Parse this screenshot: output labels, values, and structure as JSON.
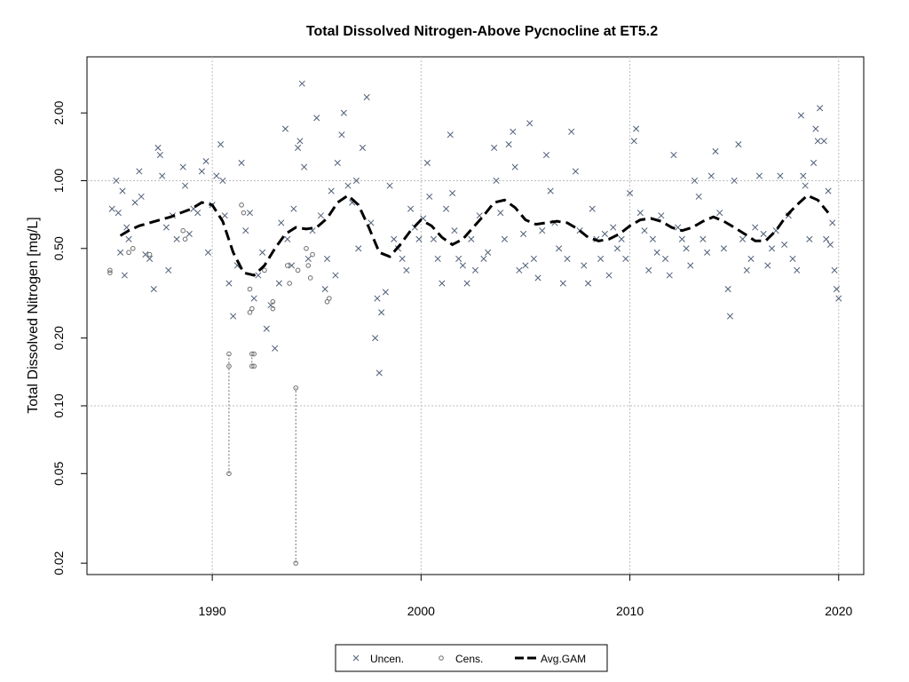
{
  "chart_data": {
    "type": "scatter",
    "title": "Total Dissolved Nitrogen-Above Pycnocline at ET5.2",
    "xlabel": "",
    "ylabel": "Total Dissolved Nitrogen [mg/L]",
    "y_scale": "log",
    "xlim": [
      1984.0,
      2021.2
    ],
    "ylim": [
      0.0178,
      3.55
    ],
    "x_ticks": [
      "1990",
      "2000",
      "2010",
      "2020"
    ],
    "x_tick_values": [
      1990,
      2000,
      2010,
      2020
    ],
    "y_ticks": [
      "0.02",
      "0.05",
      "0.10",
      "0.20",
      "0.50",
      "1.00",
      "2.00"
    ],
    "y_tick_values": [
      0.02,
      0.05,
      0.1,
      0.2,
      0.5,
      1.0,
      2.0
    ],
    "grid_x": [
      1990,
      2000,
      2010,
      2020
    ],
    "grid_y": [
      0.1,
      1.0
    ],
    "legend": {
      "position": "bottom-center",
      "entries": [
        "Uncen.",
        "Cens.",
        "Avg.GAM"
      ]
    },
    "colors": {
      "uncen": "#4f5f78",
      "cens": "#6e6e6e",
      "gam": "#000000",
      "grid": "#bdbdbd"
    },
    "series": [
      {
        "name": "Uncen.",
        "points": [
          [
            1985.2,
            0.75
          ],
          [
            1985.4,
            1.0
          ],
          [
            1985.5,
            0.72
          ],
          [
            1985.6,
            0.48
          ],
          [
            1985.7,
            0.9
          ],
          [
            1985.8,
            0.38
          ],
          [
            1985.9,
            0.62
          ],
          [
            1986.0,
            0.55
          ],
          [
            1986.3,
            0.8
          ],
          [
            1986.5,
            1.1
          ],
          [
            1986.6,
            0.85
          ],
          [
            1986.8,
            0.47
          ],
          [
            1987.0,
            0.45
          ],
          [
            1987.2,
            0.33
          ],
          [
            1987.4,
            1.4
          ],
          [
            1987.5,
            1.3
          ],
          [
            1987.6,
            1.05
          ],
          [
            1987.8,
            0.62
          ],
          [
            1987.9,
            0.4
          ],
          [
            1988.1,
            0.7
          ],
          [
            1988.3,
            0.55
          ],
          [
            1988.6,
            1.15
          ],
          [
            1988.7,
            0.95
          ],
          [
            1988.9,
            0.58
          ],
          [
            1989.1,
            0.75
          ],
          [
            1989.3,
            0.72
          ],
          [
            1989.5,
            1.1
          ],
          [
            1989.7,
            1.22
          ],
          [
            1989.8,
            0.48
          ],
          [
            1990.0,
            0.78
          ],
          [
            1990.2,
            1.05
          ],
          [
            1990.4,
            1.45
          ],
          [
            1990.5,
            1.0
          ],
          [
            1990.6,
            0.7
          ],
          [
            1990.8,
            0.35
          ],
          [
            1991.0,
            0.25
          ],
          [
            1991.2,
            0.42
          ],
          [
            1991.4,
            1.2
          ],
          [
            1991.6,
            0.6
          ],
          [
            1991.8,
            0.72
          ],
          [
            1992.0,
            0.3
          ],
          [
            1992.2,
            0.38
          ],
          [
            1992.4,
            0.48
          ],
          [
            1992.6,
            0.22
          ],
          [
            1992.8,
            0.28
          ],
          [
            1993.0,
            0.18
          ],
          [
            1993.2,
            0.35
          ],
          [
            1993.3,
            0.65
          ],
          [
            1993.5,
            1.7
          ],
          [
            1993.6,
            0.55
          ],
          [
            1993.8,
            0.42
          ],
          [
            1993.9,
            0.75
          ],
          [
            1994.1,
            1.4
          ],
          [
            1994.2,
            1.5
          ],
          [
            1994.3,
            2.7
          ],
          [
            1994.4,
            1.15
          ],
          [
            1994.6,
            0.45
          ],
          [
            1994.8,
            0.6
          ],
          [
            1995.0,
            1.9
          ],
          [
            1995.2,
            0.7
          ],
          [
            1995.4,
            0.33
          ],
          [
            1995.5,
            0.45
          ],
          [
            1995.7,
            0.9
          ],
          [
            1995.9,
            0.38
          ],
          [
            1996.0,
            1.2
          ],
          [
            1996.2,
            1.6
          ],
          [
            1996.3,
            2.0
          ],
          [
            1996.5,
            0.95
          ],
          [
            1996.7,
            0.8
          ],
          [
            1996.9,
            1.0
          ],
          [
            1997.0,
            0.5
          ],
          [
            1997.2,
            1.4
          ],
          [
            1997.4,
            2.35
          ],
          [
            1997.6,
            0.65
          ],
          [
            1997.8,
            0.2
          ],
          [
            1997.9,
            0.3
          ],
          [
            1998.0,
            0.14
          ],
          [
            1998.1,
            0.26
          ],
          [
            1998.3,
            0.32
          ],
          [
            1998.5,
            0.95
          ],
          [
            1998.7,
            0.55
          ],
          [
            1998.9,
            0.5
          ],
          [
            1999.1,
            0.45
          ],
          [
            1999.3,
            0.4
          ],
          [
            1999.5,
            0.75
          ],
          [
            1999.7,
            0.62
          ],
          [
            1999.9,
            0.55
          ],
          [
            2000.1,
            0.68
          ],
          [
            2000.3,
            1.2
          ],
          [
            2000.4,
            0.85
          ],
          [
            2000.6,
            0.55
          ],
          [
            2000.8,
            0.45
          ],
          [
            2001.0,
            0.35
          ],
          [
            2001.2,
            0.75
          ],
          [
            2001.4,
            1.6
          ],
          [
            2001.5,
            0.88
          ],
          [
            2001.6,
            0.6
          ],
          [
            2001.8,
            0.45
          ],
          [
            2002.0,
            0.42
          ],
          [
            2002.2,
            0.35
          ],
          [
            2002.4,
            0.55
          ],
          [
            2002.6,
            0.4
          ],
          [
            2002.8,
            0.7
          ],
          [
            2003.0,
            0.45
          ],
          [
            2003.2,
            0.48
          ],
          [
            2003.5,
            1.4
          ],
          [
            2003.6,
            1.0
          ],
          [
            2003.8,
            0.72
          ],
          [
            2004.0,
            0.55
          ],
          [
            2004.2,
            1.45
          ],
          [
            2004.4,
            1.65
          ],
          [
            2004.5,
            1.15
          ],
          [
            2004.7,
            0.4
          ],
          [
            2004.9,
            0.58
          ],
          [
            2005.0,
            0.42
          ],
          [
            2005.2,
            1.8
          ],
          [
            2005.4,
            0.45
          ],
          [
            2005.6,
            0.37
          ],
          [
            2005.8,
            0.6
          ],
          [
            2006.0,
            1.3
          ],
          [
            2006.2,
            0.9
          ],
          [
            2006.4,
            0.65
          ],
          [
            2006.6,
            0.5
          ],
          [
            2006.8,
            0.35
          ],
          [
            2007.0,
            0.45
          ],
          [
            2007.2,
            1.65
          ],
          [
            2007.4,
            1.1
          ],
          [
            2007.6,
            0.6
          ],
          [
            2007.8,
            0.42
          ],
          [
            2008.0,
            0.35
          ],
          [
            2008.2,
            0.75
          ],
          [
            2008.4,
            0.55
          ],
          [
            2008.6,
            0.45
          ],
          [
            2008.8,
            0.58
          ],
          [
            2009.0,
            0.38
          ],
          [
            2009.2,
            0.62
          ],
          [
            2009.4,
            0.5
          ],
          [
            2009.6,
            0.55
          ],
          [
            2009.8,
            0.45
          ],
          [
            2010.0,
            0.88
          ],
          [
            2010.2,
            1.5
          ],
          [
            2010.3,
            1.7
          ],
          [
            2010.5,
            0.72
          ],
          [
            2010.7,
            0.6
          ],
          [
            2010.9,
            0.4
          ],
          [
            2011.1,
            0.55
          ],
          [
            2011.3,
            0.48
          ],
          [
            2011.5,
            0.7
          ],
          [
            2011.7,
            0.45
          ],
          [
            2011.9,
            0.38
          ],
          [
            2012.1,
            1.3
          ],
          [
            2012.3,
            0.62
          ],
          [
            2012.5,
            0.55
          ],
          [
            2012.7,
            0.5
          ],
          [
            2012.9,
            0.42
          ],
          [
            2013.1,
            1.0
          ],
          [
            2013.3,
            0.85
          ],
          [
            2013.5,
            0.55
          ],
          [
            2013.7,
            0.48
          ],
          [
            2013.9,
            1.05
          ],
          [
            2014.1,
            1.35
          ],
          [
            2014.3,
            0.72
          ],
          [
            2014.5,
            0.5
          ],
          [
            2014.7,
            0.33
          ],
          [
            2014.8,
            0.25
          ],
          [
            2015.0,
            1.0
          ],
          [
            2015.2,
            1.45
          ],
          [
            2015.4,
            0.55
          ],
          [
            2015.6,
            0.4
          ],
          [
            2015.8,
            0.45
          ],
          [
            2016.0,
            0.62
          ],
          [
            2016.2,
            1.05
          ],
          [
            2016.4,
            0.58
          ],
          [
            2016.6,
            0.42
          ],
          [
            2016.8,
            0.5
          ],
          [
            2017.0,
            0.6
          ],
          [
            2017.2,
            1.05
          ],
          [
            2017.4,
            0.52
          ],
          [
            2017.6,
            0.7
          ],
          [
            2017.8,
            0.45
          ],
          [
            2018.0,
            0.4
          ],
          [
            2018.2,
            1.95
          ],
          [
            2018.3,
            1.05
          ],
          [
            2018.4,
            0.95
          ],
          [
            2018.6,
            0.55
          ],
          [
            2018.8,
            1.2
          ],
          [
            2018.9,
            1.7
          ],
          [
            2019.0,
            1.5
          ],
          [
            2019.1,
            2.1
          ],
          [
            2019.3,
            1.5
          ],
          [
            2019.4,
            0.55
          ],
          [
            2019.5,
            0.9
          ],
          [
            2019.6,
            0.52
          ],
          [
            2019.7,
            0.65
          ],
          [
            2019.8,
            0.4
          ],
          [
            2019.9,
            0.33
          ],
          [
            2020.0,
            0.3
          ]
        ]
      },
      {
        "name": "Cens.",
        "points": [
          [
            1985.1,
            0.4
          ],
          [
            1985.1,
            0.39
          ],
          [
            1986.0,
            0.48
          ],
          [
            1986.2,
            0.5
          ],
          [
            1987.0,
            0.47
          ],
          [
            1988.6,
            0.6
          ],
          [
            1988.7,
            0.55
          ],
          [
            1990.8,
            0.17
          ],
          [
            1990.8,
            0.15
          ],
          [
            1990.8,
            0.05
          ],
          [
            1991.4,
            0.78
          ],
          [
            1991.5,
            0.72
          ],
          [
            1991.8,
            0.33
          ],
          [
            1991.8,
            0.26
          ],
          [
            1991.9,
            0.27
          ],
          [
            1991.9,
            0.17
          ],
          [
            1991.9,
            0.15
          ],
          [
            1992.0,
            0.17
          ],
          [
            1992.0,
            0.15
          ],
          [
            1992.5,
            0.4
          ],
          [
            1992.9,
            0.29
          ],
          [
            1992.9,
            0.27
          ],
          [
            1993.6,
            0.42
          ],
          [
            1993.7,
            0.35
          ],
          [
            1994.0,
            0.12
          ],
          [
            1994.0,
            0.02
          ],
          [
            1994.1,
            0.4
          ],
          [
            1994.5,
            0.5
          ],
          [
            1994.6,
            0.42
          ],
          [
            1994.7,
            0.37
          ],
          [
            1994.8,
            0.47
          ],
          [
            1995.5,
            0.29
          ],
          [
            1995.6,
            0.3
          ]
        ],
        "bars": [
          [
            1990.8,
            0.05,
            0.17
          ],
          [
            1991.9,
            0.15,
            0.17
          ],
          [
            1994.0,
            0.02,
            0.12
          ]
        ]
      },
      {
        "name": "Avg.GAM",
        "x": [
          1985.6,
          1986.0,
          1986.5,
          1987.0,
          1987.5,
          1988.0,
          1988.5,
          1989.0,
          1989.5,
          1990.0,
          1990.5,
          1991.0,
          1991.5,
          1992.0,
          1992.5,
          1993.0,
          1993.5,
          1994.0,
          1994.5,
          1995.0,
          1995.5,
          1996.0,
          1996.5,
          1997.0,
          1997.5,
          1998.0,
          1998.5,
          1999.0,
          1999.5,
          2000.0,
          2000.5,
          2001.0,
          2001.5,
          2002.0,
          2002.5,
          2003.0,
          2003.5,
          2004.0,
          2004.5,
          2005.0,
          2005.5,
          2006.0,
          2006.5,
          2007.0,
          2007.5,
          2008.0,
          2008.5,
          2009.0,
          2009.5,
          2010.0,
          2010.5,
          2011.0,
          2011.5,
          2012.0,
          2012.5,
          2013.0,
          2013.5,
          2014.0,
          2014.5,
          2015.0,
          2015.5,
          2016.0,
          2016.5,
          2017.0,
          2017.5,
          2018.0,
          2018.5,
          2019.0,
          2019.5
        ],
        "values": [
          0.57,
          0.6,
          0.63,
          0.65,
          0.67,
          0.69,
          0.72,
          0.75,
          0.8,
          0.78,
          0.66,
          0.48,
          0.39,
          0.38,
          0.42,
          0.5,
          0.58,
          0.62,
          0.61,
          0.62,
          0.68,
          0.8,
          0.86,
          0.78,
          0.62,
          0.48,
          0.46,
          0.52,
          0.6,
          0.67,
          0.63,
          0.56,
          0.52,
          0.55,
          0.62,
          0.7,
          0.8,
          0.82,
          0.76,
          0.67,
          0.64,
          0.65,
          0.66,
          0.65,
          0.61,
          0.56,
          0.54,
          0.55,
          0.58,
          0.63,
          0.67,
          0.68,
          0.66,
          0.62,
          0.6,
          0.62,
          0.66,
          0.69,
          0.66,
          0.62,
          0.58,
          0.54,
          0.54,
          0.6,
          0.7,
          0.78,
          0.86,
          0.82,
          0.72
        ]
      }
    ]
  }
}
